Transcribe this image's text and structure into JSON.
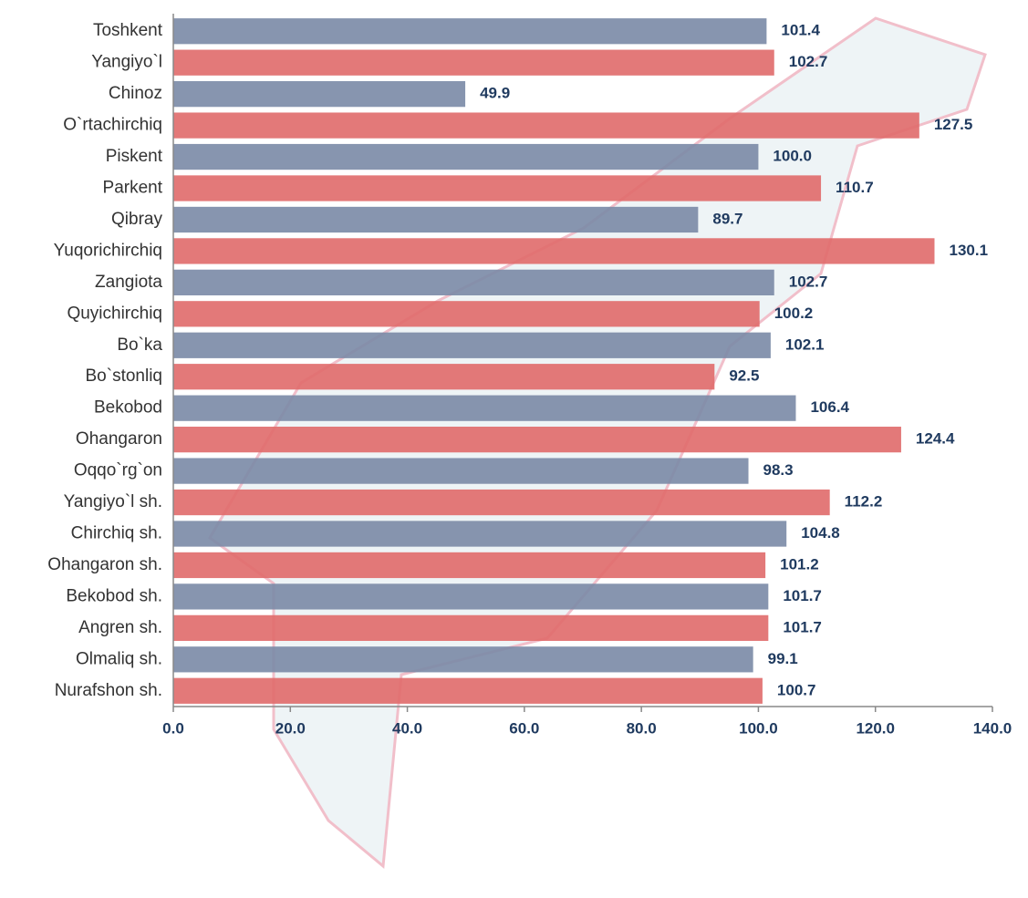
{
  "chart_data": {
    "type": "bar",
    "orientation": "horizontal",
    "categories": [
      "Toshkent",
      "Yangiyo`l",
      "Chinoz",
      "O`rtachirchiq",
      "Piskent",
      "Parkent",
      "Qibray",
      "Yuqorichirchiq",
      "Zangiota",
      "Quyichirchiq",
      "Bo`ka",
      "Bo`stonliq",
      "Bekobod",
      "Ohangaron",
      "Oqqo`rg`on",
      "Yangiyo`l sh.",
      "Chirchiq sh.",
      "Ohangaron sh.",
      "Bekobod sh.",
      "Angren sh.",
      "Olmaliq sh.",
      "Nurafshon sh."
    ],
    "values": [
      101.4,
      102.7,
      49.9,
      127.5,
      100.0,
      110.7,
      89.7,
      130.1,
      102.7,
      100.2,
      102.1,
      92.5,
      106.4,
      124.4,
      98.3,
      112.2,
      104.8,
      101.2,
      101.7,
      101.7,
      99.1,
      100.7
    ],
    "value_labels": [
      "101.4",
      "102.7",
      "49.9",
      "127.5",
      "100.0",
      "110.7",
      "89.7",
      "130.1",
      "102.7",
      "100.2",
      "102.1",
      "92.5",
      "106.4",
      "124.4",
      "98.3",
      "112.2",
      "104.8",
      "101.2",
      "101.7",
      "101.7",
      "99.1",
      "100.7"
    ],
    "colors": [
      "#7a8aa6",
      "#e06a6a"
    ],
    "xlim": [
      0,
      140
    ],
    "xticks": [
      {
        "value": 0,
        "label": "0.0"
      },
      {
        "value": 20,
        "label": "20.0"
      },
      {
        "value": 40,
        "label": "40.0"
      },
      {
        "value": 60,
        "label": "60.0"
      },
      {
        "value": 80,
        "label": "80.0"
      },
      {
        "value": 100,
        "label": "100.0"
      },
      {
        "value": 120,
        "label": "120.0"
      },
      {
        "value": 140,
        "label": "140.0"
      }
    ],
    "grid": false
  }
}
